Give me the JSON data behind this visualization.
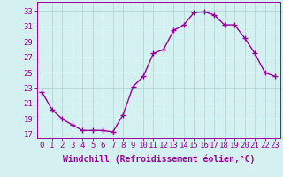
{
  "x": [
    0,
    1,
    2,
    3,
    4,
    5,
    6,
    7,
    8,
    9,
    10,
    11,
    12,
    13,
    14,
    15,
    16,
    17,
    18,
    19,
    20,
    21,
    22,
    23
  ],
  "y": [
    22.5,
    20.2,
    19.0,
    18.2,
    17.5,
    17.5,
    17.5,
    17.3,
    19.5,
    23.2,
    24.5,
    27.5,
    28.0,
    30.5,
    31.2,
    32.8,
    32.9,
    32.5,
    31.2,
    31.2,
    29.5,
    27.5,
    25.0,
    24.5
  ],
  "line_color": "#990099",
  "marker": "+",
  "marker_size": 4,
  "xlabel": "Windchill (Refroidissement éolien,°C)",
  "xlabel_fontsize": 7,
  "xtick_labels": [
    "0",
    "1",
    "2",
    "3",
    "4",
    "5",
    "6",
    "7",
    "8",
    "9",
    "10",
    "11",
    "12",
    "13",
    "14",
    "15",
    "16",
    "17",
    "18",
    "19",
    "20",
    "21",
    "22",
    "23"
  ],
  "ytick_values": [
    17,
    19,
    21,
    23,
    25,
    27,
    29,
    31,
    33
  ],
  "ylim": [
    16.5,
    34.2
  ],
  "xlim": [
    -0.5,
    23.5
  ],
  "grid_color": "#b0d8d8",
  "background_color": "#d4f0f0",
  "tick_fontsize": 6.5,
  "line_width": 1.0,
  "marker_edge_width": 1.0
}
